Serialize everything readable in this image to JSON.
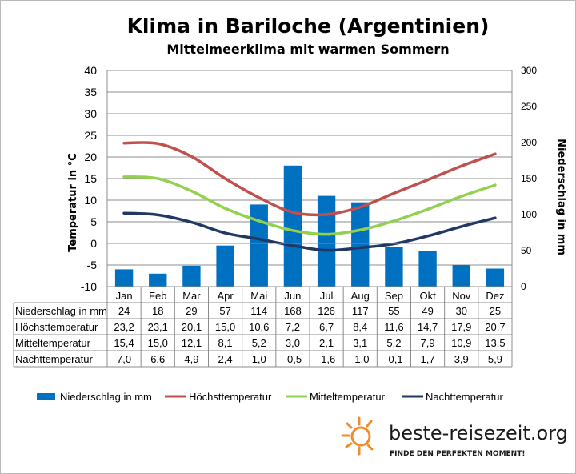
{
  "chart_data": {
    "type": "bar",
    "title": "Klima in Bariloche (Argentinien)",
    "subtitle": "Mittelmeerklima mit warmen Sommern",
    "ylabel": "Temperatur in °C",
    "ylabel_right": "Niederschlag in mm",
    "ylim": [
      -10,
      40
    ],
    "ylim_right": [
      0,
      300
    ],
    "y_ticks": [
      "40",
      "35",
      "30",
      "25",
      "20",
      "15",
      "10",
      "5",
      "0",
      "-5",
      "-10"
    ],
    "y_ticks_right": [
      "300",
      "250",
      "200",
      "150",
      "100",
      "50",
      "0"
    ],
    "grid": true,
    "legend_position": "bottom",
    "categories": [
      "Jan",
      "Feb",
      "Mar",
      "Apr",
      "Mai",
      "Jun",
      "Jul",
      "Aug",
      "Sep",
      "Okt",
      "Nov",
      "Dez"
    ],
    "series": [
      {
        "name": "Niederschlag in mm",
        "type": "bar",
        "axis": "right",
        "color": "#0070c0",
        "values": [
          24,
          18,
          29,
          57,
          114,
          168,
          126,
          117,
          55,
          49,
          30,
          25
        ],
        "labels": [
          "24",
          "18",
          "29",
          "57",
          "114",
          "168",
          "126",
          "117",
          "55",
          "49",
          "30",
          "25"
        ]
      },
      {
        "name": "Höchsttemperatur",
        "type": "line",
        "axis": "left",
        "color": "#c0504d",
        "values": [
          23.2,
          23.1,
          20.1,
          15.0,
          10.6,
          7.2,
          6.7,
          8.4,
          11.6,
          14.7,
          17.9,
          20.7
        ],
        "labels": [
          "23,2",
          "23,1",
          "20,1",
          "15,0",
          "10,6",
          "7,2",
          "6,7",
          "8,4",
          "11,6",
          "14,7",
          "17,9",
          "20,7"
        ]
      },
      {
        "name": "Mitteltemperatur",
        "type": "line",
        "axis": "left",
        "color": "#92d050",
        "values": [
          15.4,
          15.0,
          12.1,
          8.1,
          5.2,
          3.0,
          2.1,
          3.1,
          5.2,
          7.9,
          10.9,
          13.5
        ],
        "labels": [
          "15,4",
          "15,0",
          "12,1",
          "8,1",
          "5,2",
          "3,0",
          "2,1",
          "3,1",
          "5,2",
          "7,9",
          "10,9",
          "13,5"
        ]
      },
      {
        "name": "Nachttemperatur",
        "type": "line",
        "axis": "left",
        "color": "#1f3864",
        "values": [
          7.0,
          6.6,
          4.9,
          2.4,
          1.0,
          -0.5,
          -1.6,
          -1.0,
          -0.1,
          1.7,
          3.9,
          5.9
        ],
        "labels": [
          "7,0",
          "6,6",
          "4,9",
          "2,4",
          "1,0",
          "-0,5",
          "-1,6",
          "-1,0",
          "-0,1",
          "1,7",
          "3,9",
          "5,9"
        ]
      }
    ]
  },
  "branding": {
    "site": "beste-reisezeit.org",
    "tagline": "FINDE DEN PERFEKTEN MOMENT!",
    "accent_color": "#f28c28"
  }
}
